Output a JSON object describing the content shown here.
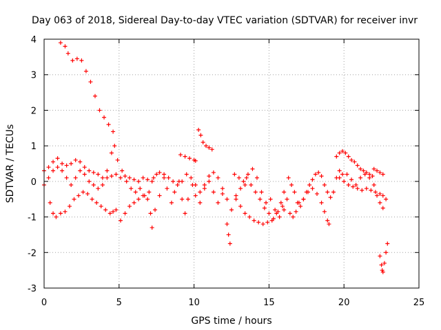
{
  "chart_data": {
    "type": "scatter",
    "title": "Day 063 of 2018, Sidereal Day-to-day VTEC variation (SDTVAR) for receiver invr",
    "xlabel": "GPS time / hours",
    "ylabel": "SDTVAR / TECUs",
    "xlim": [
      0,
      25
    ],
    "ylim": [
      -3,
      4
    ],
    "x_ticks": [
      "0",
      "5",
      "10",
      "15",
      "20",
      "25"
    ],
    "y_ticks": [
      "-3",
      "-2",
      "-1",
      "0",
      "1",
      "2",
      "3",
      "4"
    ],
    "grid": true,
    "marker": "+",
    "color": "#ff0000",
    "series": [
      {
        "name": "s1",
        "points": [
          [
            1.1,
            3.9
          ],
          [
            1.4,
            3.8
          ],
          [
            1.6,
            3.6
          ],
          [
            1.9,
            3.4
          ],
          [
            2.2,
            3.45
          ],
          [
            2.5,
            3.4
          ],
          [
            2.8,
            3.1
          ],
          [
            3.1,
            2.8
          ],
          [
            3.4,
            2.4
          ],
          [
            3.7,
            2.0
          ],
          [
            4.0,
            1.8
          ],
          [
            4.3,
            1.6
          ],
          [
            4.6,
            1.4
          ]
        ]
      },
      {
        "name": "s2",
        "points": [
          [
            0.0,
            0.3
          ],
          [
            0.3,
            0.4
          ],
          [
            0.6,
            0.55
          ],
          [
            0.9,
            0.65
          ],
          [
            1.2,
            0.5
          ],
          [
            1.5,
            0.45
          ],
          [
            1.8,
            0.5
          ],
          [
            2.1,
            0.6
          ],
          [
            2.4,
            0.55
          ],
          [
            2.7,
            0.4
          ],
          [
            3.0,
            0.3
          ],
          [
            3.3,
            0.25
          ],
          [
            3.6,
            0.2
          ],
          [
            3.9,
            0.1
          ],
          [
            4.2,
            0.1
          ],
          [
            4.5,
            0.15
          ],
          [
            4.8,
            0.2
          ],
          [
            5.1,
            0.1
          ],
          [
            5.4,
            0.15
          ],
          [
            5.7,
            0.1
          ],
          [
            6.0,
            0.05
          ],
          [
            6.3,
            0.0
          ],
          [
            6.6,
            0.1
          ],
          [
            6.9,
            0.05
          ],
          [
            7.2,
            0.0
          ]
        ]
      },
      {
        "name": "s3",
        "points": [
          [
            0.0,
            -0.1
          ],
          [
            0.3,
            0.1
          ],
          [
            0.6,
            0.3
          ],
          [
            0.9,
            0.4
          ],
          [
            1.2,
            0.3
          ],
          [
            1.5,
            0.1
          ],
          [
            1.8,
            -0.1
          ],
          [
            2.1,
            0.1
          ],
          [
            2.4,
            0.3
          ],
          [
            2.7,
            0.2
          ],
          [
            3.0,
            0.0
          ],
          [
            3.3,
            -0.1
          ],
          [
            3.6,
            -0.2
          ],
          [
            3.9,
            -0.1
          ],
          [
            4.2,
            0.3
          ],
          [
            4.5,
            0.8
          ],
          [
            4.7,
            1.0
          ],
          [
            4.9,
            0.6
          ],
          [
            5.2,
            0.3
          ],
          [
            5.5,
            0.0
          ],
          [
            5.8,
            -0.2
          ],
          [
            6.1,
            -0.3
          ],
          [
            6.4,
            -0.2
          ],
          [
            6.7,
            -0.4
          ],
          [
            7.0,
            -0.3
          ]
        ]
      },
      {
        "name": "s4",
        "points": [
          [
            0.4,
            -0.6
          ],
          [
            0.6,
            -0.9
          ],
          [
            0.8,
            -1.0
          ],
          [
            1.1,
            -0.9
          ],
          [
            1.4,
            -0.85
          ],
          [
            1.7,
            -0.7
          ],
          [
            2.0,
            -0.5
          ],
          [
            2.3,
            -0.4
          ],
          [
            2.6,
            -0.3
          ],
          [
            2.9,
            -0.35
          ],
          [
            3.2,
            -0.5
          ],
          [
            3.5,
            -0.6
          ],
          [
            3.8,
            -0.7
          ],
          [
            4.1,
            -0.8
          ],
          [
            4.4,
            -0.9
          ],
          [
            4.6,
            -0.85
          ]
        ]
      },
      {
        "name": "s5",
        "points": [
          [
            4.8,
            -0.8
          ],
          [
            5.1,
            -1.1
          ],
          [
            5.4,
            -0.9
          ],
          [
            5.7,
            -0.7
          ],
          [
            6.0,
            -0.6
          ],
          [
            6.3,
            -0.5
          ],
          [
            6.6,
            -0.4
          ],
          [
            6.9,
            -0.5
          ],
          [
            7.1,
            -0.9
          ],
          [
            7.2,
            -1.3
          ],
          [
            7.4,
            -0.8
          ],
          [
            7.7,
            -0.4
          ],
          [
            8.0,
            0.1
          ],
          [
            8.2,
            -0.2
          ],
          [
            8.5,
            -0.6
          ],
          [
            8.7,
            -0.3
          ],
          [
            9.0,
            0.0
          ],
          [
            9.2,
            -0.5
          ],
          [
            9.4,
            -0.9
          ],
          [
            9.6,
            -0.5
          ],
          [
            9.9,
            -0.1
          ],
          [
            10.1,
            -0.4
          ]
        ]
      },
      {
        "name": "s6",
        "points": [
          [
            7.3,
            0.1
          ],
          [
            7.5,
            0.2
          ],
          [
            7.7,
            0.25
          ],
          [
            8.0,
            0.2
          ],
          [
            8.3,
            0.1
          ],
          [
            8.6,
            0.0
          ],
          [
            8.9,
            -0.1
          ],
          [
            9.2,
            0.0
          ],
          [
            9.5,
            0.2
          ],
          [
            9.8,
            0.1
          ],
          [
            10.1,
            -0.1
          ],
          [
            10.4,
            -0.3
          ],
          [
            10.7,
            -0.1
          ],
          [
            11.0,
            0.15
          ],
          [
            11.3,
            0.25
          ],
          [
            11.6,
            0.1
          ],
          [
            11.9,
            -0.2
          ],
          [
            12.2,
            -0.5
          ],
          [
            12.5,
            -0.8
          ],
          [
            12.8,
            -0.5
          ],
          [
            13.1,
            -0.2
          ],
          [
            13.4,
            -0.1
          ]
        ]
      },
      {
        "name": "s7",
        "points": [
          [
            9.1,
            0.75
          ],
          [
            9.4,
            0.7
          ],
          [
            9.7,
            0.65
          ],
          [
            10.0,
            0.6
          ],
          [
            10.1,
            0.58
          ]
        ]
      },
      {
        "name": "s8",
        "points": [
          [
            10.3,
            1.45
          ],
          [
            10.45,
            1.3
          ],
          [
            10.6,
            1.1
          ],
          [
            10.8,
            1.0
          ],
          [
            11.0,
            0.95
          ],
          [
            11.2,
            0.9
          ]
        ]
      },
      {
        "name": "s9",
        "points": [
          [
            10.4,
            -0.6
          ],
          [
            10.7,
            -0.2
          ],
          [
            11.0,
            0.0
          ],
          [
            11.3,
            -0.3
          ],
          [
            11.6,
            -0.6
          ],
          [
            11.9,
            -0.35
          ]
        ]
      },
      {
        "name": "s10",
        "points": [
          [
            12.2,
            -1.2
          ],
          [
            12.3,
            -1.5
          ],
          [
            12.4,
            -1.75
          ]
        ]
      },
      {
        "name": "s11",
        "points": [
          [
            12.7,
            0.2
          ],
          [
            13.0,
            0.1
          ],
          [
            13.3,
            0.0
          ],
          [
            13.6,
            0.2
          ],
          [
            13.9,
            0.35
          ],
          [
            14.2,
            0.1
          ],
          [
            14.5,
            -0.3
          ],
          [
            14.8,
            -0.6
          ],
          [
            15.1,
            -0.5
          ],
          [
            15.4,
            -0.8
          ],
          [
            15.7,
            -1.0
          ],
          [
            16.0,
            -0.8
          ]
        ]
      },
      {
        "name": "s12",
        "points": [
          [
            12.8,
            -0.4
          ],
          [
            13.1,
            -0.7
          ],
          [
            13.4,
            -0.9
          ],
          [
            13.7,
            -1.0
          ],
          [
            14.0,
            -1.1
          ],
          [
            14.3,
            -1.15
          ],
          [
            14.6,
            -1.2
          ],
          [
            14.9,
            -1.15
          ],
          [
            15.2,
            -1.1
          ],
          [
            15.5,
            -0.9
          ],
          [
            15.8,
            -0.6
          ],
          [
            16.0,
            -0.3
          ]
        ]
      },
      {
        "name": "s13",
        "points": [
          [
            13.5,
            0.1
          ],
          [
            13.8,
            -0.1
          ],
          [
            14.1,
            -0.3
          ],
          [
            14.4,
            -0.5
          ],
          [
            14.7,
            -0.75
          ],
          [
            15.0,
            -0.9
          ],
          [
            15.3,
            -1.05
          ],
          [
            15.6,
            -0.85
          ],
          [
            15.9,
            -0.7
          ],
          [
            16.2,
            -0.5
          ]
        ]
      },
      {
        "name": "s14",
        "points": [
          [
            16.3,
            0.1
          ],
          [
            16.5,
            -0.1
          ],
          [
            16.7,
            -0.3
          ],
          [
            16.9,
            -0.6
          ],
          [
            17.1,
            -0.7
          ],
          [
            17.3,
            -0.5
          ],
          [
            17.5,
            -0.3
          ],
          [
            17.7,
            -0.1
          ],
          [
            17.9,
            0.05
          ],
          [
            18.1,
            0.2
          ],
          [
            18.3,
            0.25
          ],
          [
            18.5,
            0.15
          ],
          [
            18.7,
            -0.1
          ],
          [
            18.9,
            -0.3
          ],
          [
            19.1,
            -0.45
          ],
          [
            19.3,
            -0.3
          ],
          [
            19.5,
            0.1
          ],
          [
            19.7,
            0.3
          ],
          [
            19.9,
            0.2
          ]
        ]
      },
      {
        "name": "s15",
        "points": [
          [
            16.4,
            -0.9
          ],
          [
            16.6,
            -1.0
          ],
          [
            16.8,
            -0.85
          ],
          [
            17.0,
            -0.6
          ],
          [
            17.3,
            -0.5
          ],
          [
            17.6,
            -0.3
          ],
          [
            17.9,
            -0.2
          ],
          [
            18.2,
            -0.35
          ],
          [
            18.5,
            -0.6
          ],
          [
            18.7,
            -0.85
          ],
          [
            18.9,
            -1.1
          ],
          [
            19.0,
            -1.2
          ]
        ]
      },
      {
        "name": "s16",
        "points": [
          [
            19.7,
            0.1
          ],
          [
            20.0,
            0.0
          ],
          [
            20.3,
            -0.1
          ],
          [
            20.6,
            -0.15
          ],
          [
            20.9,
            -0.2
          ],
          [
            21.2,
            -0.25
          ],
          [
            21.5,
            -0.2
          ],
          [
            21.8,
            -0.25
          ],
          [
            22.1,
            -0.3
          ],
          [
            22.4,
            -0.35
          ],
          [
            22.6,
            -0.4
          ],
          [
            22.8,
            -0.5
          ]
        ]
      },
      {
        "name": "s17",
        "points": [
          [
            19.5,
            0.7
          ],
          [
            19.7,
            0.8
          ],
          [
            19.9,
            0.85
          ],
          [
            20.1,
            0.8
          ],
          [
            20.3,
            0.7
          ],
          [
            20.5,
            0.6
          ],
          [
            20.7,
            0.55
          ],
          [
            20.9,
            0.45
          ],
          [
            21.1,
            0.35
          ],
          [
            21.3,
            0.3
          ],
          [
            21.5,
            0.25
          ],
          [
            21.7,
            0.2
          ],
          [
            21.9,
            0.15
          ]
        ]
      },
      {
        "name": "s18",
        "points": [
          [
            20.2,
            0.2
          ],
          [
            20.5,
            0.05
          ],
          [
            20.8,
            -0.1
          ],
          [
            21.1,
            0.1
          ],
          [
            21.4,
            0.2
          ],
          [
            21.7,
            0.1
          ],
          [
            22.0,
            -0.1
          ],
          [
            22.2,
            -0.4
          ],
          [
            22.4,
            -0.6
          ],
          [
            22.6,
            -0.75
          ]
        ]
      },
      {
        "name": "s19",
        "points": [
          [
            22.0,
            0.35
          ],
          [
            22.2,
            0.3
          ],
          [
            22.4,
            0.25
          ],
          [
            22.6,
            0.2
          ]
        ]
      },
      {
        "name": "s20",
        "points": [
          [
            22.4,
            -2.1
          ],
          [
            22.5,
            -2.35
          ],
          [
            22.55,
            -2.5
          ],
          [
            22.6,
            -2.55
          ],
          [
            22.7,
            -2.3
          ],
          [
            22.8,
            -2.0
          ],
          [
            22.9,
            -1.75
          ]
        ]
      }
    ]
  }
}
